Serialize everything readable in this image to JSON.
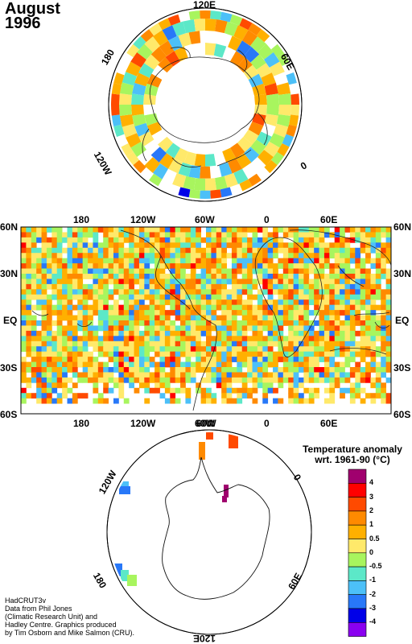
{
  "title": {
    "month": "August",
    "year": "1996"
  },
  "north_polar": {
    "labels": {
      "top": "120E",
      "upper_right": "60E",
      "right": "0",
      "upper_left": "180",
      "lower_left": "120W"
    }
  },
  "world_map": {
    "lat_labels": [
      "60N",
      "30N",
      "EQ",
      "30S",
      "60S"
    ],
    "lon_labels": [
      "180",
      "120W",
      "60W",
      "0",
      "60E"
    ]
  },
  "south_polar": {
    "labels": {
      "top": "60W",
      "upper_left": "120W",
      "upper_right": "0",
      "lower_left": "180",
      "lower_right": "60E",
      "bottom": "120E"
    }
  },
  "legend": {
    "title_line1": "Temperature anomaly",
    "title_line2": "wrt. 1961-90  (°C)",
    "items": [
      {
        "label": "4",
        "color": "#a0006e"
      },
      {
        "label": "3",
        "color": "#ff0000"
      },
      {
        "label": "2",
        "color": "#ff4a00"
      },
      {
        "label": "1",
        "color": "#ff8a00"
      },
      {
        "label": "0.5",
        "color": "#ffb000"
      },
      {
        "label": "0",
        "color": "#ffe96a"
      },
      {
        "label": "-0.5",
        "color": "#a8f55e"
      },
      {
        "label": "-1",
        "color": "#5ce8c8"
      },
      {
        "label": "-2",
        "color": "#4cc0f8"
      },
      {
        "label": "-3",
        "color": "#2878f8"
      },
      {
        "label": "-4",
        "color": "#0000e8"
      },
      {
        "label": "",
        "color": "#8a00f0"
      }
    ]
  },
  "credit": {
    "line1": "HadCRUT3v",
    "line2": "Data from Phil Jones",
    "line3": "(Climatic Research Unit) and",
    "line4": "Hadley Centre.  Graphics produced",
    "line5": "by Tim Osborn and Mike Salmon (CRU)."
  }
}
